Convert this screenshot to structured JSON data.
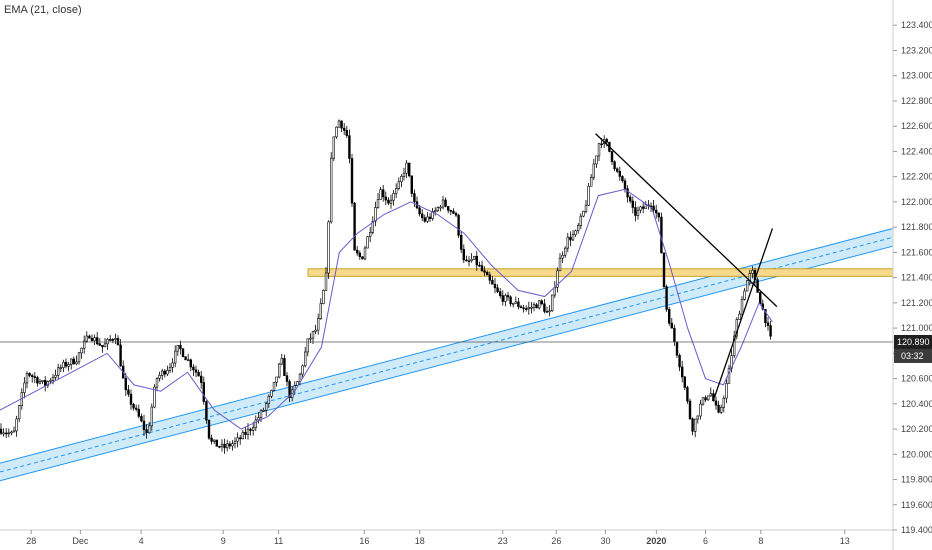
{
  "indicator_label": "EMA (21, close)",
  "price_label": "120.890",
  "countdown_label": "03:32",
  "colors": {
    "candle": "#000000",
    "ema": "#6a5acd",
    "channel_fill": "#bfe3f7",
    "channel_edge": "#2196f3",
    "zone_fill": "#f7d98c",
    "zone_edge": "#c9a227"
  },
  "chart_data": {
    "type": "candlestick",
    "ylim": [
      119.4,
      123.6
    ],
    "y_ticks": [
      119.4,
      119.6,
      119.8,
      120.0,
      120.2,
      120.4,
      120.6,
      120.8,
      121.0,
      121.2,
      121.4,
      121.6,
      121.8,
      122.0,
      122.2,
      122.4,
      122.6,
      122.8,
      123.0,
      123.2,
      123.4
    ],
    "y_tick_labels": [
      "119.400",
      "119.600",
      "119.800",
      "120.000",
      "120.200",
      "120.400",
      "120.600",
      "120.800",
      "121.000",
      "121.200",
      "121.400",
      "121.600",
      "121.800",
      "122.000",
      "122.200",
      "122.400",
      "122.600",
      "122.800",
      "123.000",
      "123.200",
      "123.400"
    ],
    "x_ticks": [
      {
        "label": "28",
        "pos": 0.035
      },
      {
        "label": "Dec",
        "pos": 0.09
      },
      {
        "label": "4",
        "pos": 0.158
      },
      {
        "label": "9",
        "pos": 0.25
      },
      {
        "label": "11",
        "pos": 0.312
      },
      {
        "label": "16",
        "pos": 0.408
      },
      {
        "label": "18",
        "pos": 0.47
      },
      {
        "label": "23",
        "pos": 0.563
      },
      {
        "label": "26",
        "pos": 0.623
      },
      {
        "label": "30",
        "pos": 0.678
      },
      {
        "label": "2020",
        "pos": 0.735,
        "bold": true
      },
      {
        "label": "6",
        "pos": 0.79
      },
      {
        "label": "8",
        "pos": 0.852
      },
      {
        "label": "13",
        "pos": 0.946
      }
    ],
    "price_path": [
      [
        0.0,
        120.2
      ],
      [
        0.015,
        120.15
      ],
      [
        0.03,
        120.65
      ],
      [
        0.05,
        120.55
      ],
      [
        0.07,
        120.7
      ],
      [
        0.085,
        120.75
      ],
      [
        0.1,
        120.95
      ],
      [
        0.115,
        120.85
      ],
      [
        0.13,
        120.95
      ],
      [
        0.14,
        120.5
      ],
      [
        0.155,
        120.3
      ],
      [
        0.165,
        120.15
      ],
      [
        0.175,
        120.6
      ],
      [
        0.19,
        120.7
      ],
      [
        0.2,
        120.85
      ],
      [
        0.215,
        120.7
      ],
      [
        0.225,
        120.6
      ],
      [
        0.235,
        120.1
      ],
      [
        0.25,
        120.05
      ],
      [
        0.265,
        120.1
      ],
      [
        0.28,
        120.2
      ],
      [
        0.295,
        120.35
      ],
      [
        0.305,
        120.5
      ],
      [
        0.315,
        120.75
      ],
      [
        0.325,
        120.45
      ],
      [
        0.335,
        120.6
      ],
      [
        0.345,
        120.9
      ],
      [
        0.355,
        121.0
      ],
      [
        0.365,
        121.4
      ],
      [
        0.372,
        122.5
      ],
      [
        0.38,
        122.65
      ],
      [
        0.39,
        122.5
      ],
      [
        0.397,
        121.6
      ],
      [
        0.405,
        121.55
      ],
      [
        0.415,
        121.8
      ],
      [
        0.425,
        122.1
      ],
      [
        0.435,
        122.0
      ],
      [
        0.445,
        122.1
      ],
      [
        0.455,
        122.3
      ],
      [
        0.465,
        121.95
      ],
      [
        0.475,
        121.85
      ],
      [
        0.485,
        121.9
      ],
      [
        0.495,
        122.0
      ],
      [
        0.51,
        121.9
      ],
      [
        0.52,
        121.5
      ],
      [
        0.53,
        121.55
      ],
      [
        0.545,
        121.4
      ],
      [
        0.56,
        121.25
      ],
      [
        0.575,
        121.2
      ],
      [
        0.59,
        121.15
      ],
      [
        0.605,
        121.2
      ],
      [
        0.615,
        121.1
      ],
      [
        0.625,
        121.5
      ],
      [
        0.635,
        121.7
      ],
      [
        0.645,
        121.75
      ],
      [
        0.655,
        121.95
      ],
      [
        0.665,
        122.3
      ],
      [
        0.672,
        122.5
      ],
      [
        0.68,
        122.45
      ],
      [
        0.69,
        122.25
      ],
      [
        0.7,
        122.1
      ],
      [
        0.71,
        121.9
      ],
      [
        0.72,
        121.95
      ],
      [
        0.73,
        122.0
      ],
      [
        0.738,
        121.85
      ],
      [
        0.745,
        121.2
      ],
      [
        0.755,
        120.9
      ],
      [
        0.765,
        120.6
      ],
      [
        0.775,
        120.2
      ],
      [
        0.785,
        120.4
      ],
      [
        0.795,
        120.5
      ],
      [
        0.805,
        120.3
      ],
      [
        0.815,
        120.6
      ],
      [
        0.825,
        121.05
      ],
      [
        0.835,
        121.35
      ],
      [
        0.842,
        121.45
      ],
      [
        0.85,
        121.25
      ],
      [
        0.858,
        121.05
      ],
      [
        0.865,
        120.85
      ]
    ],
    "ema_path": [
      [
        0.0,
        120.35
      ],
      [
        0.04,
        120.5
      ],
      [
        0.08,
        120.65
      ],
      [
        0.12,
        120.8
      ],
      [
        0.15,
        120.55
      ],
      [
        0.18,
        120.5
      ],
      [
        0.21,
        120.65
      ],
      [
        0.24,
        120.35
      ],
      [
        0.27,
        120.2
      ],
      [
        0.3,
        120.3
      ],
      [
        0.33,
        120.5
      ],
      [
        0.36,
        120.85
      ],
      [
        0.38,
        121.6
      ],
      [
        0.4,
        121.75
      ],
      [
        0.43,
        121.9
      ],
      [
        0.46,
        122.0
      ],
      [
        0.49,
        121.9
      ],
      [
        0.52,
        121.75
      ],
      [
        0.55,
        121.5
      ],
      [
        0.58,
        121.3
      ],
      [
        0.61,
        121.25
      ],
      [
        0.64,
        121.45
      ],
      [
        0.67,
        122.05
      ],
      [
        0.7,
        122.1
      ],
      [
        0.73,
        121.95
      ],
      [
        0.75,
        121.5
      ],
      [
        0.77,
        121.0
      ],
      [
        0.79,
        120.6
      ],
      [
        0.81,
        120.55
      ],
      [
        0.83,
        120.85
      ],
      [
        0.85,
        121.2
      ],
      [
        0.865,
        121.05
      ]
    ],
    "channel": {
      "x0": 0.0,
      "mid0": 119.86,
      "x1": 1.0,
      "mid1": 121.72,
      "half_width": 0.07
    },
    "zone": {
      "x0": 0.345,
      "x1": 1.0,
      "y_low": 121.41,
      "y_high": 121.47
    },
    "trendline_down": [
      [
        0.667,
        122.54
      ],
      [
        0.87,
        121.17
      ]
    ],
    "trendline_up": [
      [
        0.8,
        120.45
      ],
      [
        0.865,
        121.79
      ]
    ],
    "current_price": 120.89
  }
}
